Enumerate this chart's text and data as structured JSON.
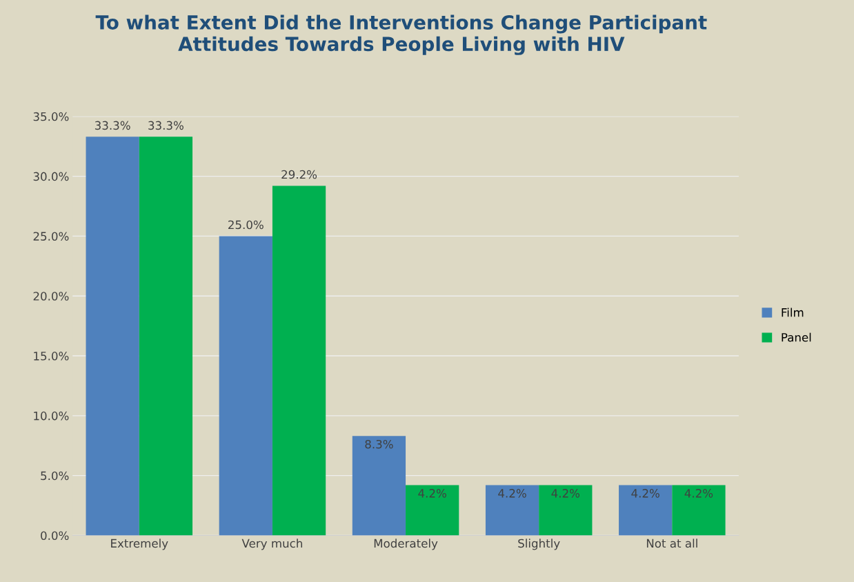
{
  "chart_data": {
    "type": "bar",
    "title": "To what Extent Did the Interventions Change Participant\nAttitudes Towards People Living with HIV",
    "categories": [
      "Extremely",
      "Very much",
      "Moderately",
      "Slightly",
      "Not at all"
    ],
    "series": [
      {
        "name": "Film",
        "color": "#4f81bd",
        "values": [
          33.3,
          25.0,
          8.3,
          4.2,
          4.2
        ],
        "value_labels": [
          "33.3%",
          "25.0%",
          "8.3%",
          "4.2%",
          "4.2%"
        ]
      },
      {
        "name": "Panel",
        "color": "#00b050",
        "values": [
          33.3,
          29.2,
          4.2,
          4.2,
          4.2
        ],
        "value_labels": [
          "33.3%",
          "29.2%",
          "4.2%",
          "4.2%",
          "4.2%"
        ]
      }
    ],
    "ylim": [
      0,
      35
    ],
    "yticks": [
      {
        "value": 0,
        "label": "0.0%"
      },
      {
        "value": 5,
        "label": "5.0%"
      },
      {
        "value": 10,
        "label": "10.0%"
      },
      {
        "value": 15,
        "label": "15.0%"
      },
      {
        "value": 20,
        "label": "20.0%"
      },
      {
        "value": 25,
        "label": "25.0%"
      },
      {
        "value": 30,
        "label": "30.0%"
      },
      {
        "value": 35,
        "label": "35.0%"
      }
    ],
    "grid": "y",
    "legend": "right"
  }
}
